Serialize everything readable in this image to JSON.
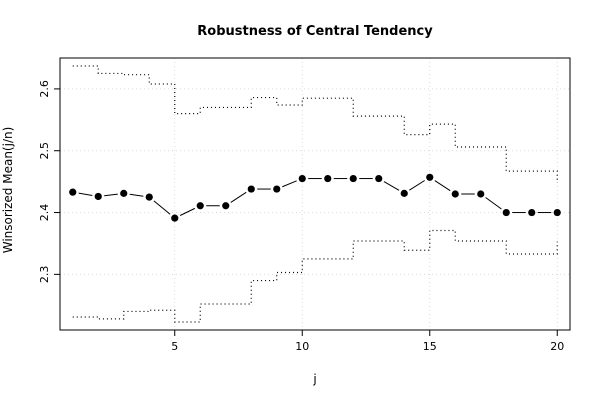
{
  "chart_data": {
    "type": "line",
    "title": "Robustness of Central Tendency",
    "xlabel": "j",
    "ylabel": "Winsorized Mean(j/n)",
    "xlim": [
      0.5,
      20.5
    ],
    "ylim": [
      2.21,
      2.65
    ],
    "xticks": [
      5,
      10,
      15,
      20
    ],
    "yticks": [
      2.3,
      2.4,
      2.5,
      2.6
    ],
    "grid": true,
    "x": [
      1,
      2,
      3,
      4,
      5,
      6,
      7,
      8,
      9,
      10,
      11,
      12,
      13,
      14,
      15,
      16,
      17,
      18,
      19,
      20
    ],
    "series": [
      {
        "role": "mean",
        "style": "solid-points",
        "values": [
          2.433,
          2.426,
          2.431,
          2.425,
          2.391,
          2.411,
          2.411,
          2.438,
          2.438,
          2.455,
          2.455,
          2.455,
          2.455,
          2.431,
          2.457,
          2.43,
          2.43,
          2.4,
          2.4,
          2.4
        ]
      },
      {
        "role": "upper-bound",
        "style": "dotted-step",
        "values": [
          2.637,
          2.625,
          2.623,
          2.608,
          2.56,
          2.57,
          2.57,
          2.586,
          2.574,
          2.585,
          2.585,
          2.556,
          2.556,
          2.526,
          2.543,
          2.506,
          2.506,
          2.467,
          2.467,
          2.448
        ]
      },
      {
        "role": "lower-bound",
        "style": "dotted-step",
        "values": [
          2.231,
          2.228,
          2.24,
          2.242,
          2.223,
          2.252,
          2.252,
          2.29,
          2.303,
          2.325,
          2.325,
          2.354,
          2.354,
          2.339,
          2.371,
          2.354,
          2.354,
          2.333,
          2.333,
          2.353
        ]
      }
    ],
    "colors": {
      "line": "#000000",
      "grid": "#d9d9d9"
    }
  }
}
